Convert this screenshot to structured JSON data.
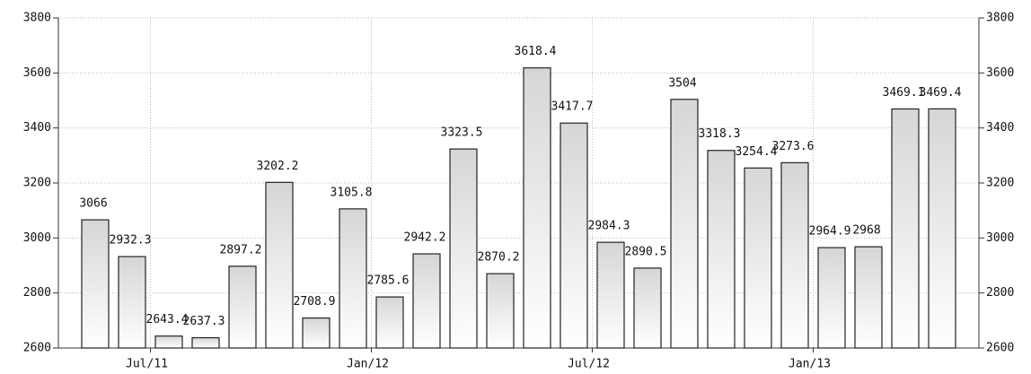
{
  "chart_data": {
    "type": "bar",
    "categories": [
      null,
      "Jul/11",
      null,
      null,
      null,
      null,
      null,
      "Jan/12",
      null,
      null,
      null,
      null,
      null,
      "Jul/12",
      null,
      null,
      null,
      null,
      null,
      "Jan/13",
      null,
      null,
      null,
      null
    ],
    "values": [
      3066,
      2932.3,
      2643.4,
      2637.3,
      2897.2,
      3202.2,
      2708.9,
      3105.8,
      2785.6,
      2942.2,
      3323.5,
      2870.2,
      3618.4,
      3417.7,
      2984.3,
      2890.5,
      3504,
      3318.3,
      3254.4,
      3273.6,
      2964.9,
      2968,
      3469.1,
      3469.4
    ],
    "ylim": [
      2600,
      3800
    ],
    "yticks": [
      2600,
      2800,
      3000,
      3200,
      3400,
      3600,
      3800
    ],
    "grid": true
  }
}
